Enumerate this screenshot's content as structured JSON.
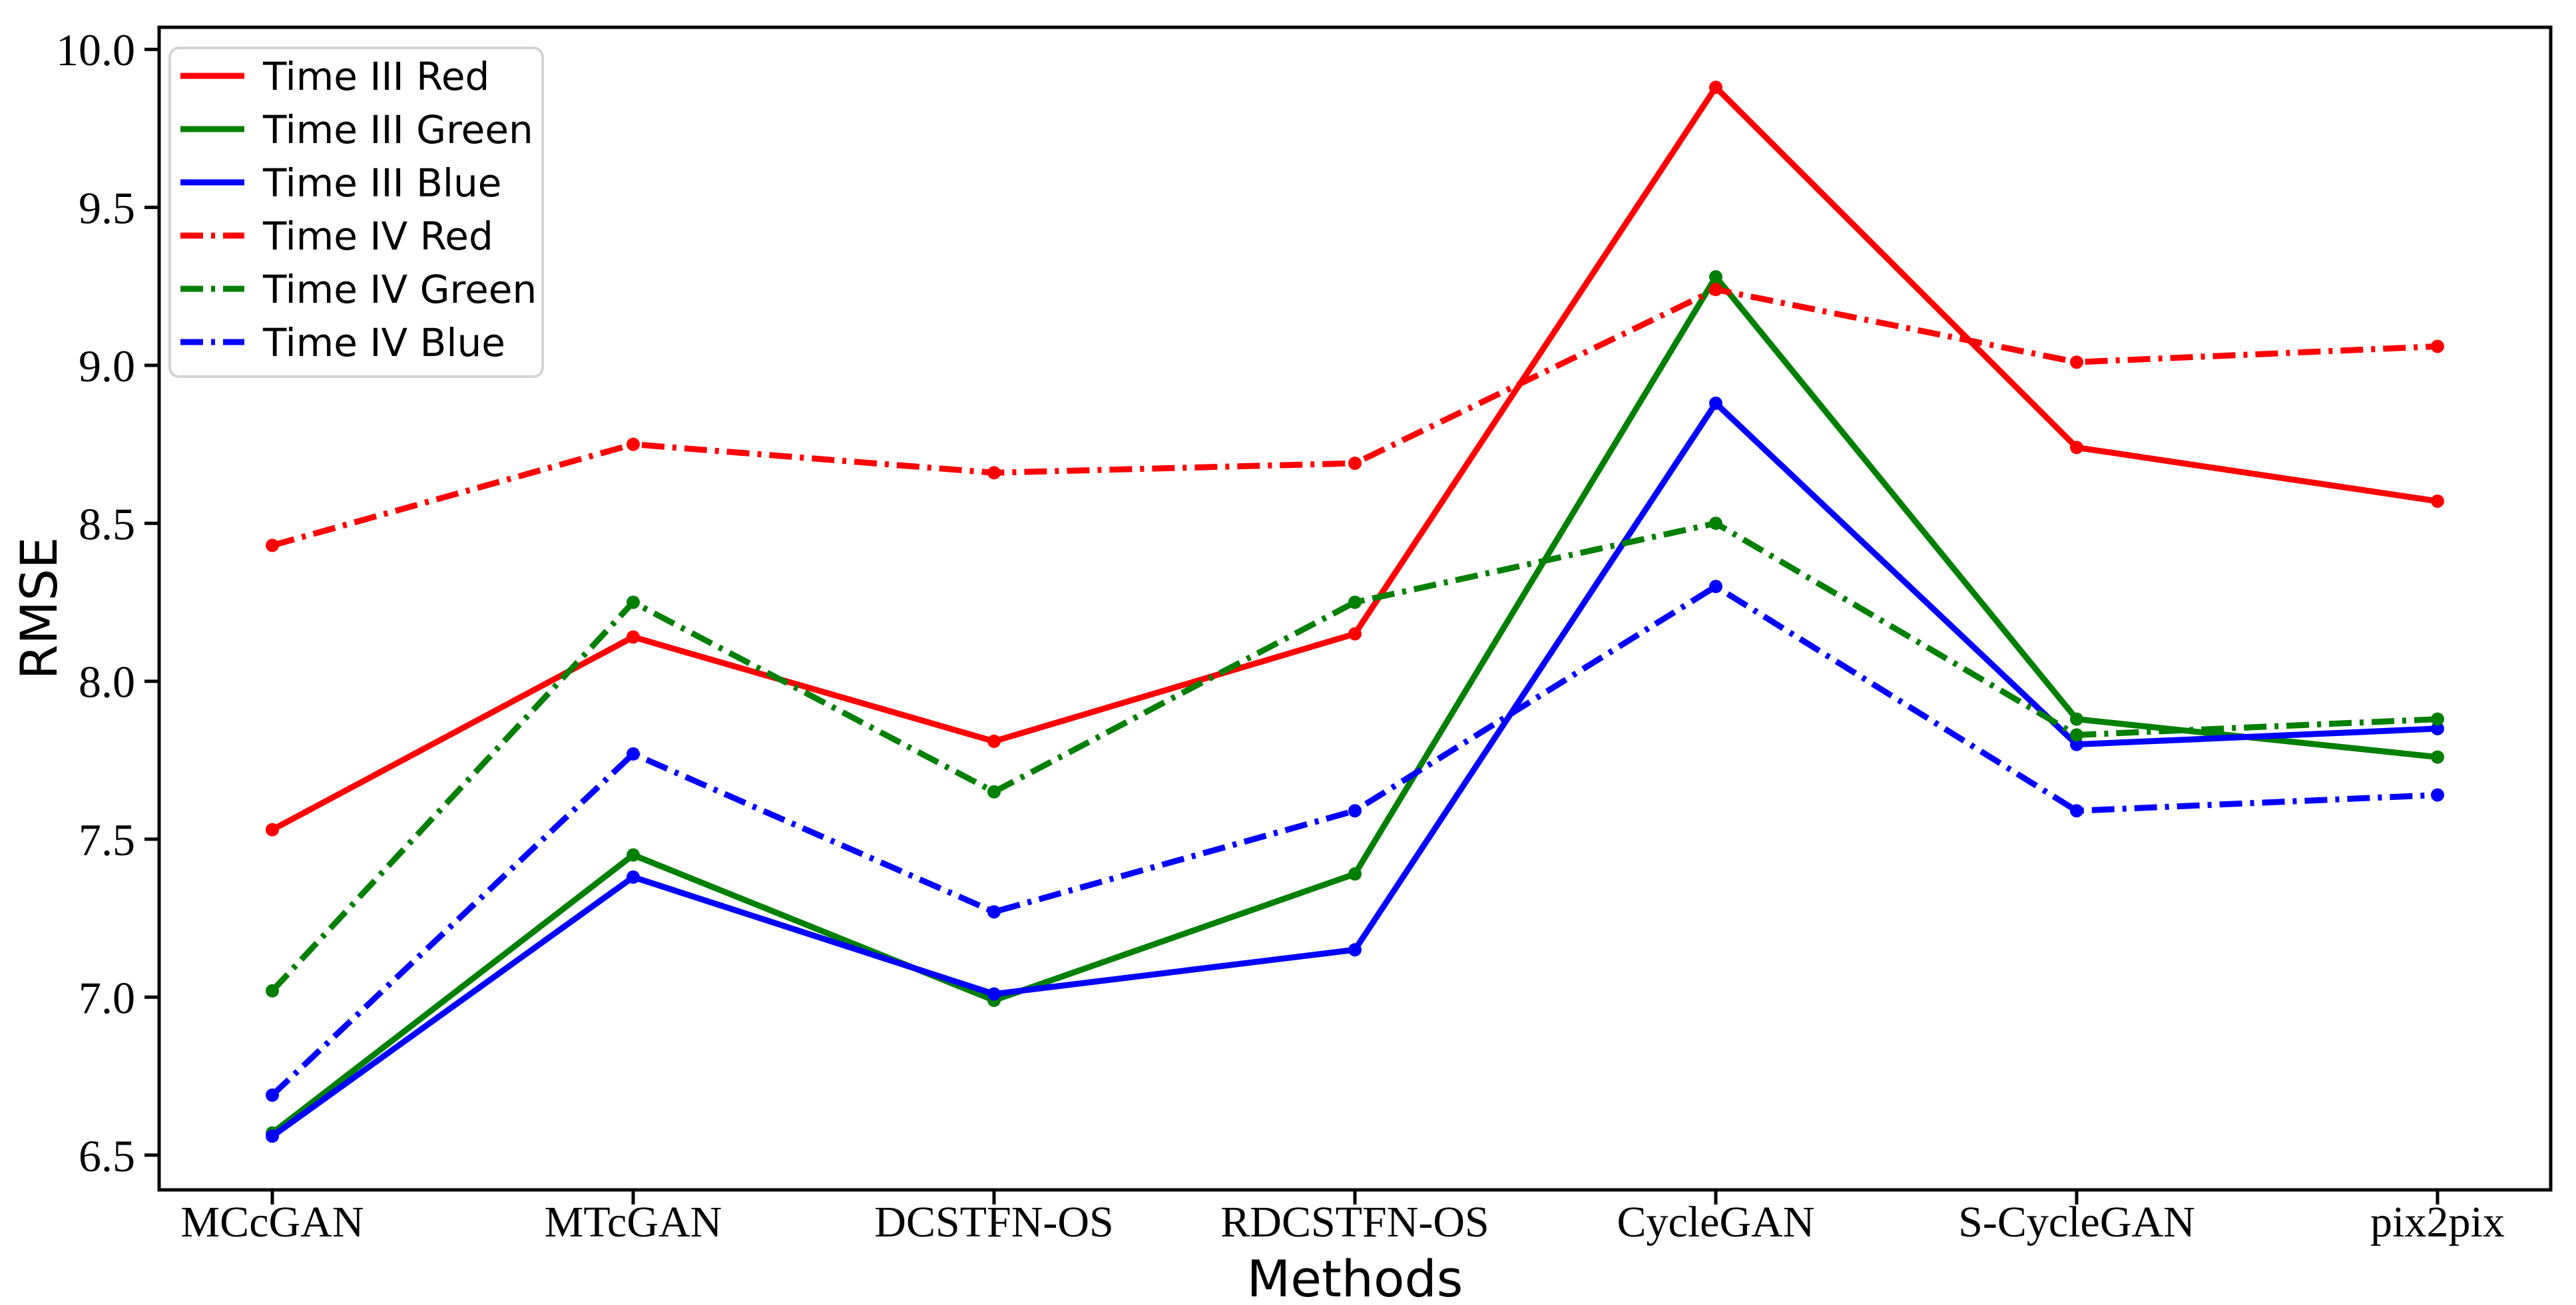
{
  "chart_data": {
    "type": "line",
    "title": "",
    "xlabel": "Methods",
    "ylabel": "RMSE",
    "categories": [
      "MCcGAN",
      "MTcGAN",
      "DCSTFN-OS",
      "RDCSTFN-OS",
      "CycleGAN",
      "S-CycleGAN",
      "pix2pix"
    ],
    "series": [
      {
        "name": "Time III Red",
        "color": "#ff0000",
        "line_style": "solid",
        "values": [
          7.53,
          8.14,
          7.81,
          8.15,
          9.88,
          8.74,
          8.57
        ]
      },
      {
        "name": "Time III Green",
        "color": "#008000",
        "line_style": "solid",
        "values": [
          6.57,
          7.45,
          6.99,
          7.39,
          9.28,
          7.88,
          7.76
        ]
      },
      {
        "name": "Time III Blue",
        "color": "#0000ff",
        "line_style": "solid",
        "values": [
          6.56,
          7.38,
          7.01,
          7.15,
          8.88,
          7.8,
          7.85
        ]
      },
      {
        "name": "Time IV Red",
        "color": "#ff0000",
        "line_style": "dashdot",
        "values": [
          8.43,
          8.75,
          8.66,
          8.69,
          9.24,
          9.01,
          9.06
        ]
      },
      {
        "name": "Time IV Green",
        "color": "#008000",
        "line_style": "dashdot",
        "values": [
          7.02,
          8.25,
          7.65,
          8.25,
          8.5,
          7.83,
          7.88
        ]
      },
      {
        "name": "Time IV Blue",
        "color": "#0000ff",
        "line_style": "dashdot",
        "values": [
          6.69,
          7.77,
          7.27,
          7.59,
          8.3,
          7.59,
          7.64
        ]
      }
    ],
    "ytick_labels": [
      "6.5",
      "7.0",
      "7.5",
      "8.0",
      "8.5",
      "9.0",
      "9.5",
      "10.0"
    ],
    "ylim": [
      6.39,
      10.07
    ],
    "grid": false,
    "legend_position": "upper left",
    "marker": "point",
    "frame_color": "#000000",
    "legend_border_color": "#d3d3d3",
    "background_color": "#ffffff"
  }
}
